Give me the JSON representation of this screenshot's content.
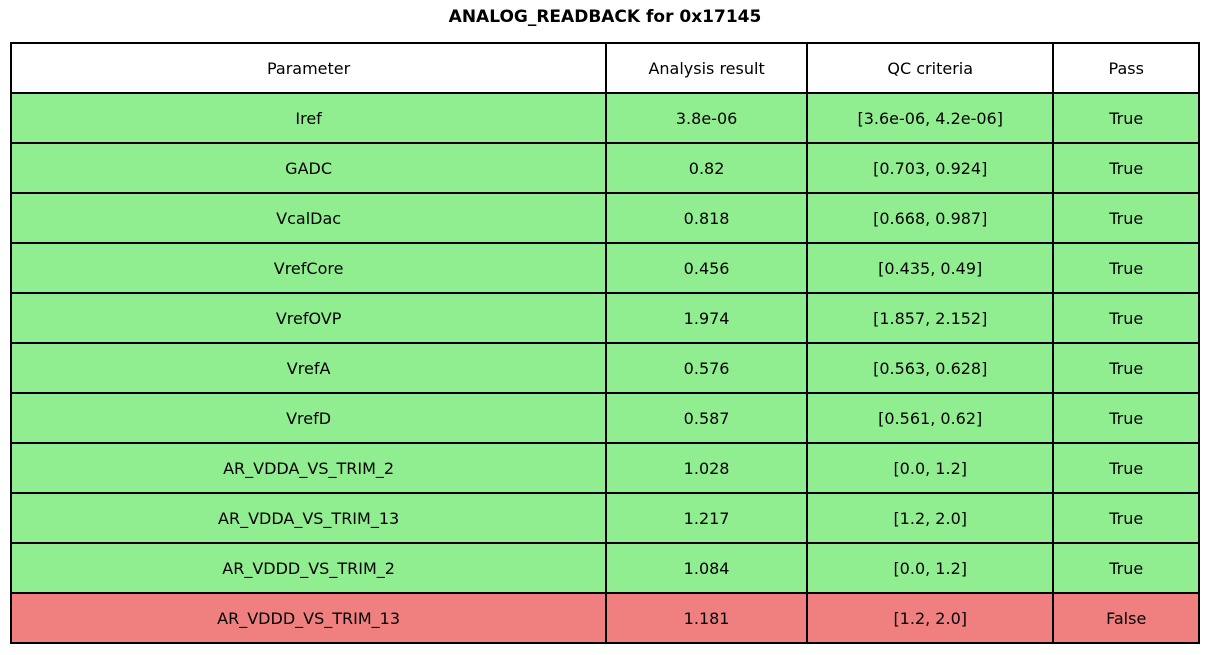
{
  "colors": {
    "pass_row": "#90ee90",
    "fail_row": "#f08080",
    "border": "#000000",
    "header_bg": "#ffffff",
    "text": "#000000"
  },
  "chart_data": {
    "type": "table",
    "title": "ANALOG_READBACK for 0x17145",
    "columns": [
      "Parameter",
      "Analysis result",
      "QC criteria",
      "Pass"
    ],
    "rows": [
      {
        "parameter": "Iref",
        "result": "3.8e-06",
        "criteria": "[3.6e-06, 4.2e-06]",
        "pass": "True"
      },
      {
        "parameter": "GADC",
        "result": "0.82",
        "criteria": "[0.703, 0.924]",
        "pass": "True"
      },
      {
        "parameter": "VcalDac",
        "result": "0.818",
        "criteria": "[0.668, 0.987]",
        "pass": "True"
      },
      {
        "parameter": "VrefCore",
        "result": "0.456",
        "criteria": "[0.435, 0.49]",
        "pass": "True"
      },
      {
        "parameter": "VrefOVP",
        "result": "1.974",
        "criteria": "[1.857, 2.152]",
        "pass": "True"
      },
      {
        "parameter": "VrefA",
        "result": "0.576",
        "criteria": "[0.563, 0.628]",
        "pass": "True"
      },
      {
        "parameter": "VrefD",
        "result": "0.587",
        "criteria": "[0.561, 0.62]",
        "pass": "True"
      },
      {
        "parameter": "AR_VDDA_VS_TRIM_2",
        "result": "1.028",
        "criteria": "[0.0, 1.2]",
        "pass": "True"
      },
      {
        "parameter": "AR_VDDA_VS_TRIM_13",
        "result": "1.217",
        "criteria": "[1.2, 2.0]",
        "pass": "True"
      },
      {
        "parameter": "AR_VDDD_VS_TRIM_2",
        "result": "1.084",
        "criteria": "[0.0, 1.2]",
        "pass": "True"
      },
      {
        "parameter": "AR_VDDD_VS_TRIM_13",
        "result": "1.181",
        "criteria": "[1.2, 2.0]",
        "pass": "False"
      }
    ],
    "row_status": [
      "pass",
      "pass",
      "pass",
      "pass",
      "pass",
      "pass",
      "pass",
      "pass",
      "pass",
      "pass",
      "fail"
    ],
    "layout": {
      "grid": true,
      "legend": false
    }
  }
}
